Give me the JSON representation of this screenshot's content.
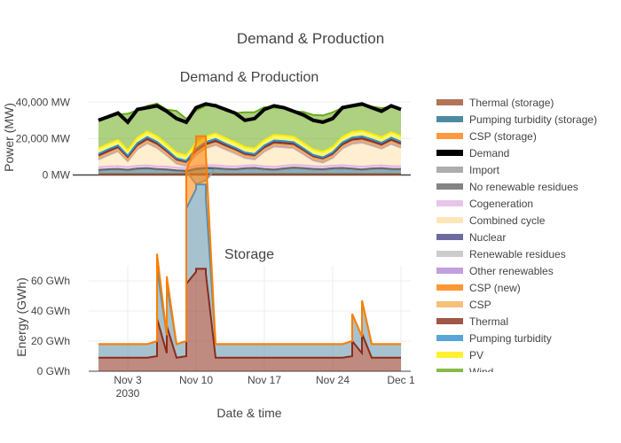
{
  "figure": {
    "title": "Demand & Production"
  },
  "colors": {
    "grid": "#eeeeee",
    "zeroline": "#444444",
    "axis": "#444444"
  },
  "chart_data": [
    {
      "type": "area",
      "title": "Demand & Production",
      "xlabel": "",
      "ylabel": "Power (MW)",
      "xlim": [
        "2030-10-30",
        "2030-12-02"
      ],
      "ylim": [
        0,
        45000
      ],
      "yticks": [
        0,
        20000,
        40000
      ],
      "ytick_labels": [
        "0 MW",
        "20,000 MW",
        "40,000 MW"
      ],
      "x": [
        "2030-10-31",
        "2030-11-01",
        "2030-11-02",
        "2030-11-03",
        "2030-11-04",
        "2030-11-05",
        "2030-11-06",
        "2030-11-07",
        "2030-11-08",
        "2030-11-09",
        "2030-11-10",
        "2030-11-11",
        "2030-11-12",
        "2030-11-13",
        "2030-11-14",
        "2030-11-15",
        "2030-11-16",
        "2030-11-17",
        "2030-11-18",
        "2030-11-19",
        "2030-11-20",
        "2030-11-21",
        "2030-11-22",
        "2030-11-23",
        "2030-11-24",
        "2030-11-25",
        "2030-11-26",
        "2030-11-27",
        "2030-11-28",
        "2030-11-29",
        "2030-11-30",
        "2030-12-01"
      ],
      "series": [
        {
          "name": "Thermal (storage)",
          "color": "#a0522d",
          "values": [
            500,
            500,
            500,
            500,
            500,
            500,
            500,
            500,
            500,
            500,
            500,
            500,
            500,
            500,
            500,
            500,
            500,
            500,
            500,
            500,
            500,
            500,
            500,
            500,
            500,
            500,
            500,
            500,
            500,
            500,
            500,
            500
          ]
        },
        {
          "name": "Pumping turbidity (storage)",
          "color": "#1f6f8b",
          "values": [
            2000,
            2400,
            2600,
            2100,
            2800,
            3000,
            2500,
            2300,
            1800,
            1500,
            2700,
            3200,
            3000,
            2600,
            2400,
            2900,
            3100,
            2500,
            2200,
            2800,
            3300,
            3000,
            2600,
            2400,
            2900,
            3100,
            2700,
            2300,
            2800,
            3000,
            2600,
            2500
          ]
        },
        {
          "name": "CSP (storage)",
          "color": "#ff7f0e",
          "values": [
            0,
            0,
            0,
            0,
            0,
            0,
            0,
            0,
            0,
            0,
            0,
            0,
            0,
            0,
            0,
            0,
            0,
            0,
            0,
            0,
            0,
            0,
            0,
            0,
            0,
            0,
            0,
            0,
            0,
            0,
            0,
            0
          ]
        },
        {
          "name": "Demand",
          "color": "#000000",
          "values": [
            30000,
            32000,
            34000,
            29000,
            36000,
            37000,
            38000,
            35000,
            31000,
            29000,
            37000,
            39000,
            38000,
            36000,
            34000,
            30000,
            31000,
            36000,
            38000,
            37000,
            35000,
            33000,
            30000,
            29000,
            31000,
            37000,
            38000,
            39000,
            37000,
            35000,
            38000,
            36000
          ]
        },
        {
          "name": "Import",
          "color": "#999999",
          "values": [
            0,
            0,
            0,
            0,
            0,
            0,
            0,
            0,
            0,
            0,
            -5000,
            -3000,
            0,
            0,
            0,
            0,
            0,
            0,
            0,
            0,
            0,
            0,
            0,
            0,
            0,
            0,
            0,
            0,
            0,
            0,
            0,
            0
          ]
        },
        {
          "name": "No renewable residues",
          "color": "#666666",
          "values": [
            300,
            300,
            300,
            300,
            300,
            300,
            300,
            300,
            300,
            300,
            300,
            300,
            300,
            300,
            300,
            300,
            300,
            300,
            300,
            300,
            300,
            300,
            300,
            300,
            300,
            300,
            300,
            300,
            300,
            300,
            300,
            300
          ]
        },
        {
          "name": "Cogeneration",
          "color": "#e4b6e6",
          "values": [
            1500,
            1500,
            1500,
            1500,
            1500,
            1500,
            1500,
            1500,
            1500,
            1500,
            1500,
            1500,
            1500,
            1500,
            1500,
            1500,
            1500,
            1500,
            1500,
            1500,
            1500,
            1500,
            1500,
            1500,
            1500,
            1500,
            1500,
            1500,
            1500,
            1500,
            1500,
            1500
          ]
        },
        {
          "name": "Combined cycle",
          "color": "#ffe0a8",
          "values": [
            4000,
            6000,
            8000,
            3000,
            9000,
            12000,
            10000,
            6000,
            2000,
            1000,
            6000,
            9000,
            11000,
            9000,
            7000,
            4000,
            3000,
            8000,
            11000,
            10000,
            9000,
            6000,
            3000,
            2000,
            4000,
            9000,
            12000,
            13000,
            11000,
            9000,
            12000,
            10000
          ]
        },
        {
          "name": "Nuclear",
          "color": "#47478a",
          "values": [
            0,
            0,
            0,
            0,
            0,
            0,
            0,
            0,
            0,
            0,
            0,
            0,
            0,
            0,
            0,
            0,
            0,
            0,
            0,
            0,
            0,
            0,
            0,
            0,
            0,
            0,
            0,
            0,
            0,
            0,
            0,
            0
          ]
        },
        {
          "name": "Renewable residues",
          "color": "#c0c0c0",
          "values": [
            200,
            200,
            200,
            200,
            200,
            200,
            200,
            200,
            200,
            200,
            200,
            200,
            200,
            200,
            200,
            200,
            200,
            200,
            200,
            200,
            200,
            200,
            200,
            200,
            200,
            200,
            200,
            200,
            200,
            200,
            200,
            200
          ]
        },
        {
          "name": "Other renewables",
          "color": "#b488d8",
          "values": [
            500,
            500,
            500,
            500,
            500,
            500,
            500,
            500,
            500,
            500,
            500,
            500,
            500,
            500,
            500,
            500,
            500,
            500,
            500,
            500,
            500,
            500,
            500,
            500,
            500,
            500,
            500,
            500,
            500,
            500,
            500,
            500
          ]
        },
        {
          "name": "CSP (new)",
          "color": "#ff7f00",
          "values": [
            0,
            0,
            0,
            0,
            0,
            0,
            0,
            0,
            0,
            0,
            0,
            0,
            0,
            0,
            0,
            0,
            0,
            0,
            0,
            0,
            0,
            0,
            0,
            0,
            0,
            0,
            0,
            0,
            0,
            0,
            0,
            0
          ]
        },
        {
          "name": "CSP",
          "color": "#f4b15a",
          "values": [
            300,
            300,
            300,
            300,
            300,
            300,
            300,
            300,
            300,
            300,
            300,
            300,
            300,
            300,
            300,
            300,
            300,
            300,
            300,
            300,
            300,
            300,
            300,
            300,
            300,
            300,
            300,
            300,
            300,
            300,
            300,
            300
          ]
        },
        {
          "name": "Thermal",
          "color": "#8b2c1a",
          "values": [
            1500,
            1500,
            1500,
            1500,
            1500,
            1500,
            1500,
            1500,
            1500,
            1500,
            1500,
            1500,
            1500,
            1500,
            1500,
            1500,
            1500,
            1500,
            1500,
            1500,
            1500,
            1500,
            1500,
            1500,
            1500,
            1500,
            1500,
            1500,
            1500,
            1500,
            1500,
            1500
          ]
        },
        {
          "name": "Pumping turbidity",
          "color": "#2f8fd0",
          "values": [
            800,
            900,
            800,
            700,
            1000,
            1100,
            900,
            800,
            600,
            500,
            900,
            1100,
            1000,
            900,
            800,
            700,
            600,
            900,
            1000,
            1000,
            900,
            800,
            600,
            500,
            700,
            1000,
            1100,
            1100,
            1000,
            900,
            1100,
            1000
          ]
        },
        {
          "name": "PV",
          "color": "#ffee00",
          "values": [
            3000,
            3000,
            3000,
            3000,
            3000,
            3000,
            3000,
            3000,
            3000,
            3000,
            3000,
            3000,
            3000,
            3000,
            3000,
            3000,
            3000,
            3000,
            3000,
            3000,
            3000,
            3000,
            3000,
            3000,
            3000,
            3000,
            3000,
            3000,
            3000,
            3000,
            3000,
            3000
          ]
        },
        {
          "name": "Wind",
          "color": "#6aaa1a",
          "values": [
            16000,
            15000,
            14000,
            20000,
            15000,
            14000,
            18000,
            19000,
            23000,
            20000,
            18000,
            17000,
            16000,
            15000,
            16000,
            19000,
            20000,
            18000,
            15000,
            15000,
            14000,
            17000,
            19000,
            20000,
            19000,
            16000,
            14000,
            14000,
            15000,
            16000,
            14000,
            15000
          ]
        }
      ]
    },
    {
      "type": "area",
      "title": "Storage",
      "xlabel": "Date & time",
      "ylabel": "Energy (GWh)",
      "xlim": [
        "2030-10-30",
        "2030-12-02"
      ],
      "ylim": [
        0,
        70
      ],
      "yticks": [
        0,
        20,
        40,
        60
      ],
      "ytick_labels": [
        "0 GWh",
        "20 GWh",
        "40 GWh",
        "60 GWh"
      ],
      "xticks": [
        "2030-11-03",
        "2030-11-10",
        "2030-11-17",
        "2030-11-24",
        "2030-12-01"
      ],
      "xtick_labels": [
        "Nov 3",
        "Nov 10",
        "Nov 17",
        "Nov 24",
        "Dec 1"
      ],
      "xtick_sublabel": "2030",
      "x": [
        "2030-10-31",
        "2030-11-01",
        "2030-11-02",
        "2030-11-03",
        "2030-11-04",
        "2030-11-05",
        "2030-11-06",
        "2030-11-06",
        "2030-11-07",
        "2030-11-07",
        "2030-11-08",
        "2030-11-08",
        "2030-11-09",
        "2030-11-09",
        "2030-11-10",
        "2030-11-10",
        "2030-11-11",
        "2030-11-11",
        "2030-11-12",
        "2030-11-13",
        "2030-11-20",
        "2030-11-25",
        "2030-11-26",
        "2030-11-26",
        "2030-11-27",
        "2030-11-27",
        "2030-11-28",
        "2030-11-29",
        "2030-11-30",
        "2030-12-01",
        "2030-12-01"
      ],
      "series": [
        {
          "name": "Thermal",
          "color": "#8b2c1a",
          "values": [
            9,
            9,
            9,
            9,
            9,
            9,
            10,
            35,
            12,
            30,
            9,
            9,
            10,
            58,
            66,
            68,
            68,
            65,
            9,
            9,
            9,
            9,
            10,
            20,
            12,
            25,
            9,
            9,
            9,
            9,
            9
          ]
        },
        {
          "name": "Pumping turbidity",
          "color": "#5e8fa8",
          "values": [
            9,
            9,
            9,
            9,
            9,
            9,
            10,
            33,
            12,
            28,
            9,
            9,
            10,
            50,
            55,
            56,
            56,
            50,
            9,
            9,
            9,
            9,
            10,
            18,
            11,
            22,
            9,
            9,
            9,
            9,
            9
          ]
        },
        {
          "name": "CSP (new)",
          "color": "#ff7f00",
          "values": [
            0,
            0,
            0,
            0,
            0,
            0,
            0,
            10,
            0,
            5,
            0,
            0,
            0,
            25,
            30,
            32,
            32,
            30,
            0,
            0,
            0,
            0,
            0,
            0,
            0,
            0,
            0,
            0,
            0,
            0,
            0
          ]
        }
      ]
    }
  ]
}
